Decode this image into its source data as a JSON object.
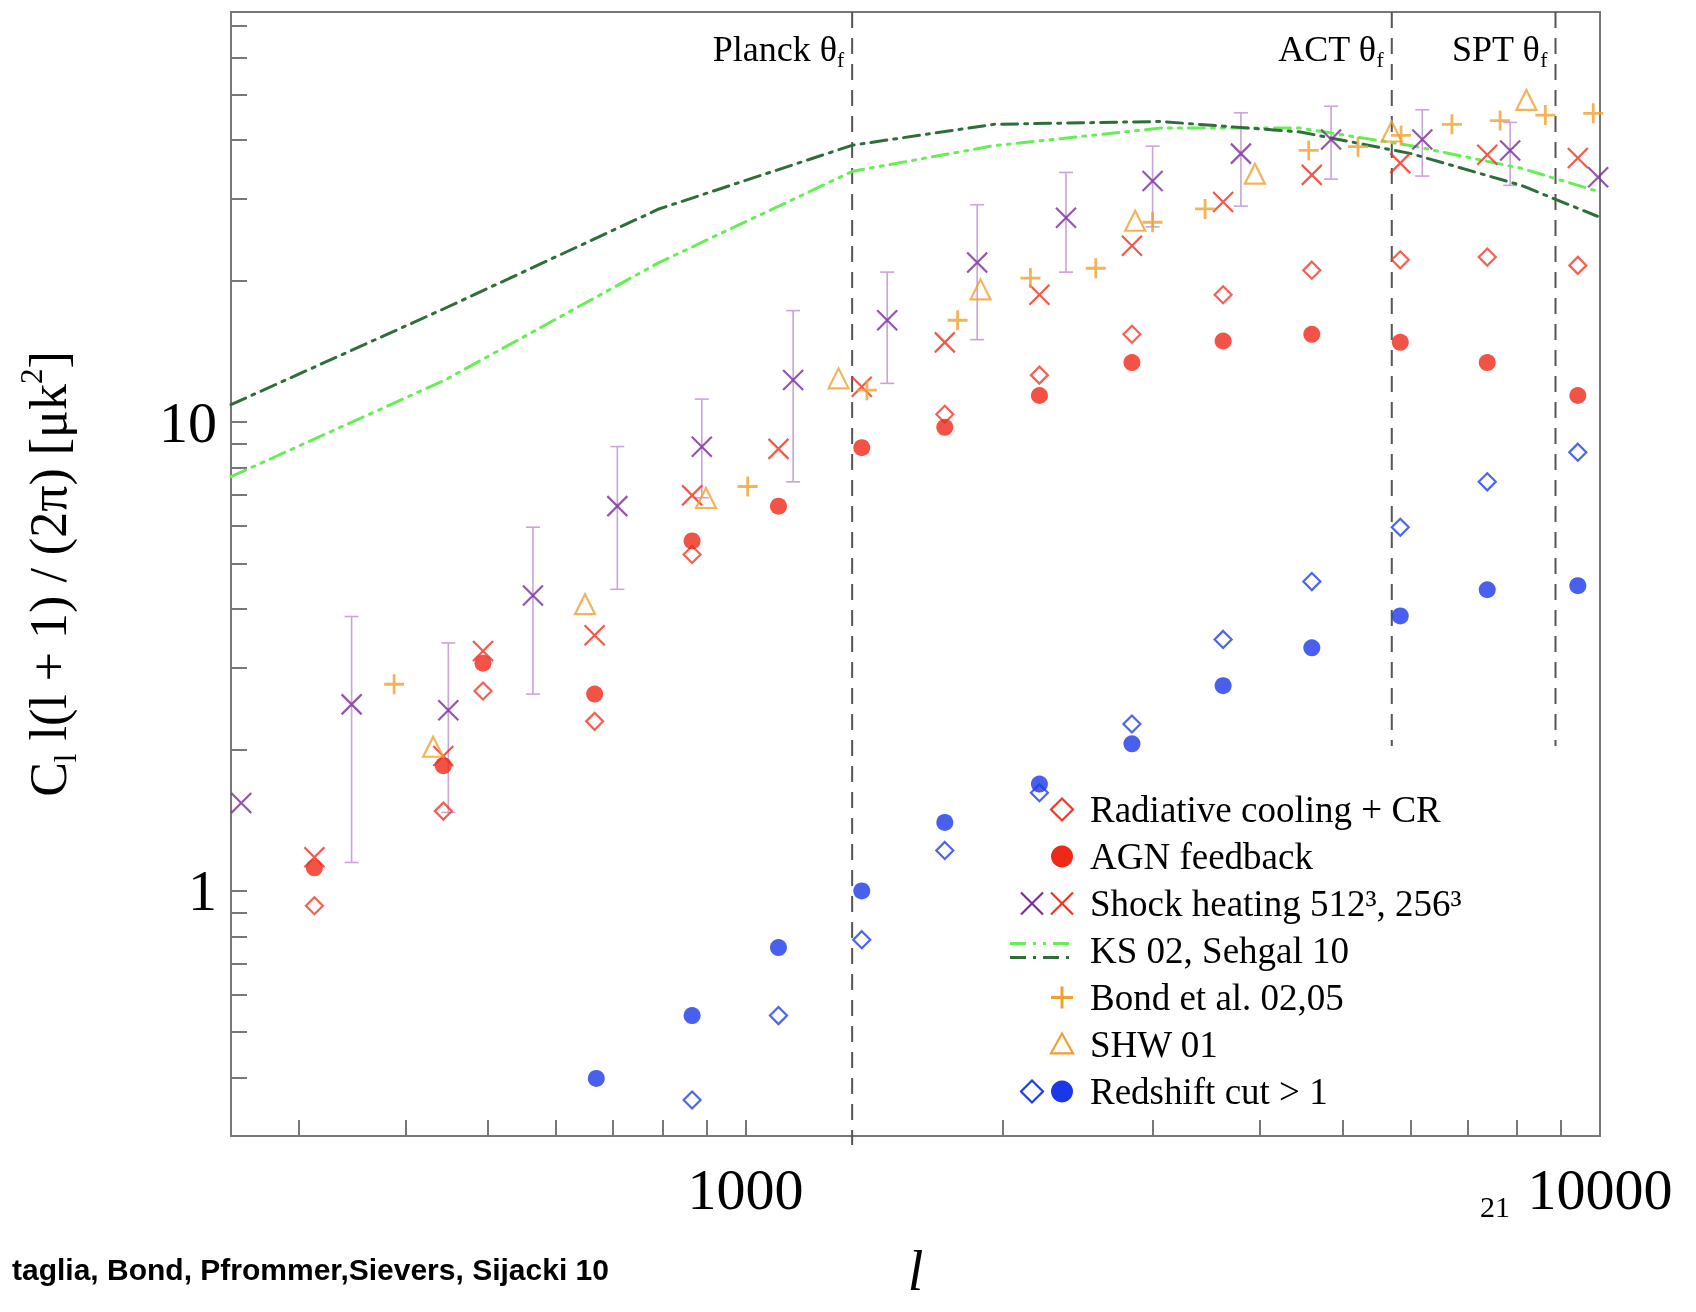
{
  "chart_data": {
    "type": "scatter",
    "xlabel": "l",
    "ylabel": "C$_{l}$ l(l + 1) / (2π) [μk$^{2}$]",
    "log": "xy",
    "grid": false,
    "legend": "bottom right",
    "xlim": [
      250,
      10000
    ],
    "ylim": [
      0.3,
      75
    ],
    "xticks": [
      {
        "value": 300,
        "label": null
      },
      {
        "value": 400,
        "label": null
      },
      {
        "value": 500,
        "label": null
      },
      {
        "value": 600,
        "label": null
      },
      {
        "value": 700,
        "label": null
      },
      {
        "value": 800,
        "label": null
      },
      {
        "value": 900,
        "label": null
      },
      1000,
      {
        "value": 2000,
        "label": null
      },
      {
        "value": 3000,
        "label": null
      },
      {
        "value": 4000,
        "label": null
      },
      {
        "value": 5000,
        "label": null
      },
      {
        "value": 6000,
        "label": null
      },
      {
        "value": 7000,
        "label": null
      },
      {
        "value": 8000,
        "label": null
      },
      {
        "value": 9000,
        "label": null
      },
      10000
    ],
    "yticks": [
      {
        "value": 0.3,
        "label": null
      },
      {
        "value": 0.4,
        "label": null
      },
      {
        "value": 0.5,
        "label": null
      },
      {
        "value": 0.6,
        "label": null
      },
      {
        "value": 0.7,
        "label": null
      },
      {
        "value": 0.8,
        "label": null
      },
      {
        "value": 0.9,
        "label": null
      },
      1,
      {
        "value": 2,
        "label": null
      },
      {
        "value": 3,
        "label": null
      },
      {
        "value": 4,
        "label": null
      },
      {
        "value": 5,
        "label": null
      },
      {
        "value": 6,
        "label": null
      },
      {
        "value": 7,
        "label": null
      },
      {
        "value": 8,
        "label": null
      },
      {
        "value": 9,
        "label": null
      },
      10,
      {
        "value": 20,
        "label": null
      },
      {
        "value": 30,
        "label": null
      },
      {
        "value": 40,
        "label": null
      },
      {
        "value": 50,
        "label": null
      },
      {
        "value": 60,
        "label": null
      },
      {
        "value": 70,
        "label": null
      }
    ],
    "ref_lines": [
      {
        "axis": "x",
        "value": 1333,
        "label": "Planck θ$_{f}$"
      },
      {
        "axis": "x",
        "value": 5706,
        "label": "ACT θ$_{f}$"
      },
      {
        "axis": "x",
        "value": 8870,
        "label": "SPT θ$_{f}$"
      }
    ],
    "annotations": [
      "taglia, Bond, Pfrommer,Sievers, Sijacki 10",
      "21"
    ],
    "series": [
      {
        "name": "Radiative cooling + CR",
        "marker": "diamond",
        "color": "#f03a28",
        "x": [
          313,
          443,
          493,
          666,
          866,
          1093,
          1368,
          1711,
          2208,
          2833,
          3622,
          4600,
          5838,
          7380,
          9420
        ],
        "values": [
          0.93,
          1.48,
          2.67,
          2.3,
          5.22,
          null,
          null,
          10.4,
          12.6,
          15.4,
          18.7,
          21.1,
          22.2,
          22.5,
          21.6
        ]
      },
      {
        "name": "AGN feedback",
        "marker": "circle",
        "color": "#f02818",
        "x": [
          313,
          443,
          493,
          666,
          866,
          1093,
          1368,
          1711,
          2208,
          2833,
          3622,
          4600,
          5838,
          7380,
          9420
        ],
        "values": [
          1.12,
          1.85,
          3.06,
          2.63,
          5.58,
          6.62,
          8.82,
          9.75,
          11.4,
          13.4,
          14.9,
          15.4,
          14.8,
          13.4,
          11.4
        ]
      },
      {
        "name": "Shock heating 512³, 256³",
        "marker": "cross",
        "color": "#f0301e",
        "x": [
          313,
          443,
          493,
          666,
          866,
          1093,
          1368,
          1711,
          2208,
          2833,
          3622,
          4600,
          5838,
          7380,
          9420
        ],
        "values": [
          1.18,
          1.94,
          3.25,
          3.51,
          6.98,
          8.77,
          11.9,
          14.8,
          18.7,
          23.8,
          29.5,
          33.7,
          35.7,
          37.2,
          36.6
        ]
      },
      {
        "marker": "cross",
        "color": "#7a2a9a",
        "x": [
          257,
          346,
          449,
          564,
          708,
          889,
          1137,
          1465,
          1867,
          2372,
          2995,
          3800,
          4845,
          6195,
          7850,
          9950
        ],
        "values": [
          1.54,
          2.5,
          2.43,
          4.27,
          6.62,
          8.86,
          12.3,
          16.5,
          21.9,
          27.3,
          32.7,
          37.4,
          40.1,
          40.1,
          38.0,
          33.3
        ],
        "errors": [
          null,
          [
            1.15,
            3.85
          ],
          [
            1.47,
            3.38
          ],
          [
            2.63,
            5.97
          ],
          [
            4.4,
            8.87
          ],
          [
            6.9,
            11.2
          ],
          [
            7.46,
            17.3
          ],
          [
            12.1,
            20.9
          ],
          [
            15.0,
            29.1
          ],
          [
            20.9,
            34.1
          ],
          [
            26.1,
            38.8
          ],
          [
            28.9,
            45.7
          ],
          [
            33.0,
            47.2
          ],
          [
            33.5,
            46.4
          ],
          [
            32.0,
            43.6
          ],
          null
        ]
      },
      {
        "name": "KS 02, Sehgal 10",
        "type": "line",
        "marker": "none",
        "line_style": "dashdotdot",
        "color": "#66ee55",
        "x": [
          250,
          445,
          792,
          1335,
          1954,
          3062,
          4460,
          6010,
          8090,
          9930
        ],
        "values": [
          7.65,
          12.3,
          21.9,
          34.3,
          38.9,
          42.4,
          42.4,
          38.9,
          34.8,
          31.1
        ]
      },
      {
        "type": "line",
        "marker": "none",
        "line_style": "dashdot",
        "color": "#2e6e38",
        "x": [
          250,
          445,
          792,
          1335,
          1954,
          3062,
          4460,
          6010,
          8090,
          9930
        ],
        "values": [
          10.9,
          17.5,
          28.5,
          39.0,
          43.2,
          43.8,
          41.6,
          37.4,
          32.0,
          27.5
        ]
      },
      {
        "name": "Bond et al. 02,05",
        "marker": "plus",
        "color": "#f0a030",
        "x": [
          388,
          1006,
          1387,
          1771,
          2155,
          2570,
          2995,
          3450,
          4562,
          5210,
          5850,
          6710,
          7640,
          8630,
          9820
        ],
        "values": [
          2.76,
          7.29,
          11.7,
          16.5,
          20.3,
          21.3,
          26.7,
          28.5,
          38.0,
          38.7,
          40.9,
          43.2,
          44.0,
          45.2,
          45.6
        ]
      },
      {
        "name": "SHW 01",
        "marker": "triangle",
        "color": "#f0a030",
        "x": [
          431,
          649,
          899,
          1285,
          1884,
          2858,
          3946,
          5704,
          8200
        ],
        "values": [
          2.03,
          4.09,
          6.89,
          12.4,
          19.2,
          26.9,
          33.9,
          41.7,
          48.7
        ]
      },
      {
        "name": "Redshift cut > 1",
        "marker": "circle",
        "color": "#1a38e8",
        "x": [
          669,
          866,
          1093,
          1368,
          1711,
          2208,
          2833,
          3622,
          4600,
          5838,
          7380,
          9420
        ],
        "values": [
          0.398,
          0.542,
          0.757,
          1.0,
          1.4,
          1.69,
          2.06,
          2.74,
          3.3,
          3.86,
          4.39,
          4.48
        ]
      },
      {
        "marker": "diamond",
        "color": "#1e3ee8",
        "x": [
          866,
          1093,
          1368,
          1711,
          2208,
          2833,
          3622,
          4600,
          5838,
          7380,
          9420
        ],
        "values": [
          0.358,
          0.542,
          0.787,
          1.22,
          1.62,
          2.27,
          3.44,
          4.57,
          5.97,
          7.46,
          8.63
        ]
      }
    ]
  }
}
